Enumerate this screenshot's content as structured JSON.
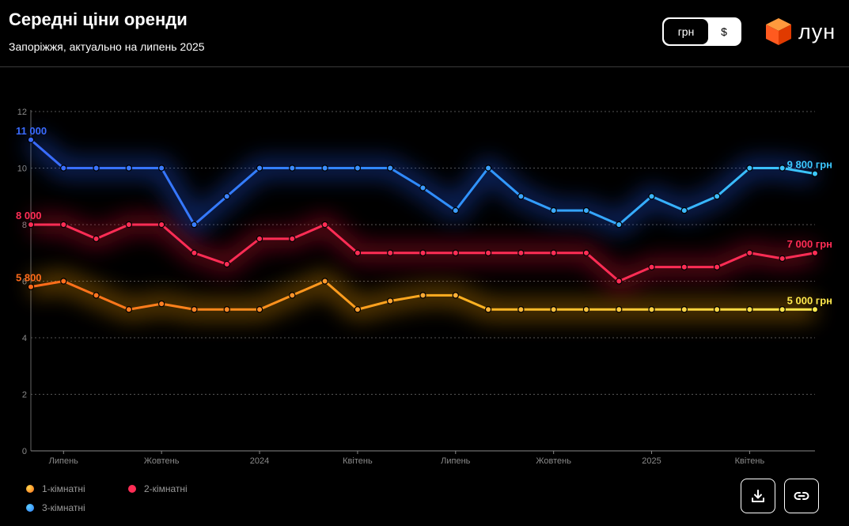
{
  "header": {
    "title": "Середні ціни оренди",
    "subtitle": "Запоріжжя, актуально на липень 2025"
  },
  "currency_toggle": {
    "options": [
      "грн",
      "$"
    ],
    "selected": "грн"
  },
  "logo": {
    "text": "лун",
    "icon": "cube-logo-icon",
    "color": "#ff5a1f"
  },
  "actions": {
    "download_icon": "download-icon",
    "link_icon": "link-icon"
  },
  "colors": {
    "one_room": [
      "#ff6a1a",
      "#ffe94d"
    ],
    "two_room": "#ff2d55",
    "three_room": [
      "#3a6bff",
      "#3cc8ff"
    ],
    "grid": "#555555",
    "axis_text": "#8a8a8a"
  },
  "chart_data": {
    "type": "line",
    "title": "Середні ціни оренди",
    "subtitle": "Запоріжжя, актуально на липень 2025",
    "ylim": [
      0,
      12
    ],
    "y_ticks": [
      "0",
      "2",
      "4",
      "6",
      "8",
      "10",
      "12"
    ],
    "x_ticks": [
      "Липень",
      "Жовтень",
      "2024",
      "Квітень",
      "Липень",
      "Жовтень",
      "2025",
      "Квітень"
    ],
    "x_tick_index": [
      1,
      4,
      7,
      10,
      13,
      16,
      19,
      22
    ],
    "grid": true,
    "legend_position": "bottom-left",
    "series": [
      {
        "name": "1-кімнатні",
        "values": [
          5.8,
          6.0,
          5.5,
          5.0,
          5.2,
          5.0,
          5.0,
          5.0,
          5.5,
          6.0,
          5.0,
          5.3,
          5.5,
          5.5,
          5.0,
          5.0,
          5.0,
          5.0,
          5.0,
          5.0,
          5.0,
          5.0,
          5.0,
          5.0,
          5.0
        ],
        "start_label": "5 800",
        "end_label": "5 000 грн"
      },
      {
        "name": "2-кімнатні",
        "values": [
          8.0,
          8.0,
          7.5,
          8.0,
          8.0,
          7.0,
          6.6,
          7.5,
          7.5,
          8.0,
          7.0,
          7.0,
          7.0,
          7.0,
          7.0,
          7.0,
          7.0,
          7.0,
          6.0,
          6.5,
          6.5,
          6.5,
          7.0,
          6.8,
          7.0
        ],
        "start_label": "8 000",
        "end_label": "7 000 грн"
      },
      {
        "name": "3-кімнатні",
        "values": [
          11.0,
          10.0,
          10.0,
          10.0,
          10.0,
          8.0,
          9.0,
          10.0,
          10.0,
          10.0,
          10.0,
          10.0,
          9.3,
          8.5,
          10.0,
          9.0,
          8.5,
          8.5,
          8.0,
          9.0,
          8.5,
          9.0,
          10.0,
          10.0,
          9.8
        ],
        "start_label": "11 000",
        "end_label": "9 800 грн"
      }
    ]
  }
}
